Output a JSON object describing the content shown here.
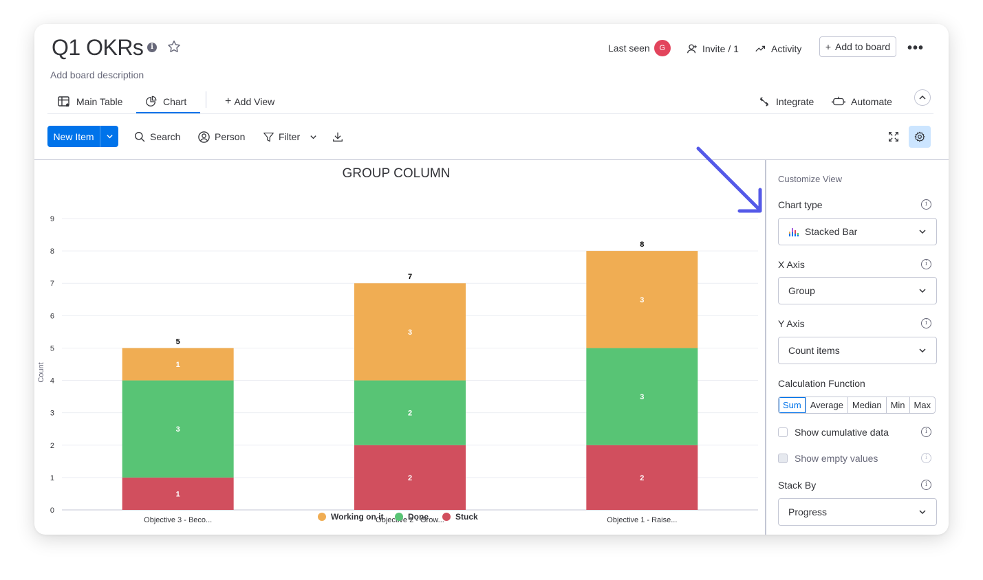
{
  "board": {
    "title": "Q1 OKRs",
    "info_icon": "i",
    "description": "Add board description"
  },
  "header": {
    "last_seen_label": "Last seen",
    "avatar_initial": "G",
    "invite_label": "Invite / 1",
    "activity_label": "Activity",
    "add_to_board_label": "Add to board",
    "more_label": "•••"
  },
  "tabs": [
    {
      "label": "Main Table"
    },
    {
      "label": "Chart"
    },
    {
      "label": "Add View"
    }
  ],
  "toolbar_right": {
    "integrate_label": "Integrate",
    "automate_label": "Automate"
  },
  "toolbar": {
    "new_item_label": "New Item",
    "search_label": "Search",
    "person_label": "Person",
    "filter_label": "Filter"
  },
  "colors": {
    "working": "#f0ad53",
    "done": "#58c475",
    "stuck": "#d14f5e",
    "accent": "#0073ea",
    "arrow": "#5459e8"
  },
  "chart_data": {
    "type": "bar",
    "stacked": true,
    "title": "GROUP COLUMN",
    "ylabel": "Count",
    "xlabel": "",
    "ylim": [
      0,
      9
    ],
    "yticks": [
      0,
      1,
      2,
      3,
      4,
      5,
      6,
      7,
      8,
      9
    ],
    "categories": [
      "Objective 3 - Beco...",
      "Objective 2 - Grow...",
      "Objective 1 - Raise..."
    ],
    "series": [
      {
        "name": "Stuck",
        "color": "#d14f5e",
        "values": [
          1,
          2,
          2
        ]
      },
      {
        "name": "Done",
        "color": "#58c475",
        "values": [
          3,
          2,
          3
        ]
      },
      {
        "name": "Working on it",
        "color": "#f0ad53",
        "values": [
          1,
          3,
          3
        ]
      }
    ],
    "totals": [
      5,
      7,
      8
    ],
    "legend": [
      "Working on it",
      "Done",
      "Stuck"
    ],
    "legend_position": "bottom",
    "grid": true
  },
  "panel": {
    "caption": "Customize View",
    "chart_type_label": "Chart type",
    "chart_type_value": "Stacked Bar",
    "x_axis_label": "X Axis",
    "x_axis_value": "Group",
    "y_axis_label": "Y Axis",
    "y_axis_value": "Count items",
    "calc_label": "Calculation Function",
    "calc_options": [
      "Sum",
      "Average",
      "Median",
      "Min",
      "Max"
    ],
    "calc_selected": "Sum",
    "cumulative_label": "Show cumulative data",
    "empty_label": "Show empty values",
    "stack_by_label": "Stack By",
    "stack_by_value": "Progress",
    "info_glyph": "i"
  }
}
